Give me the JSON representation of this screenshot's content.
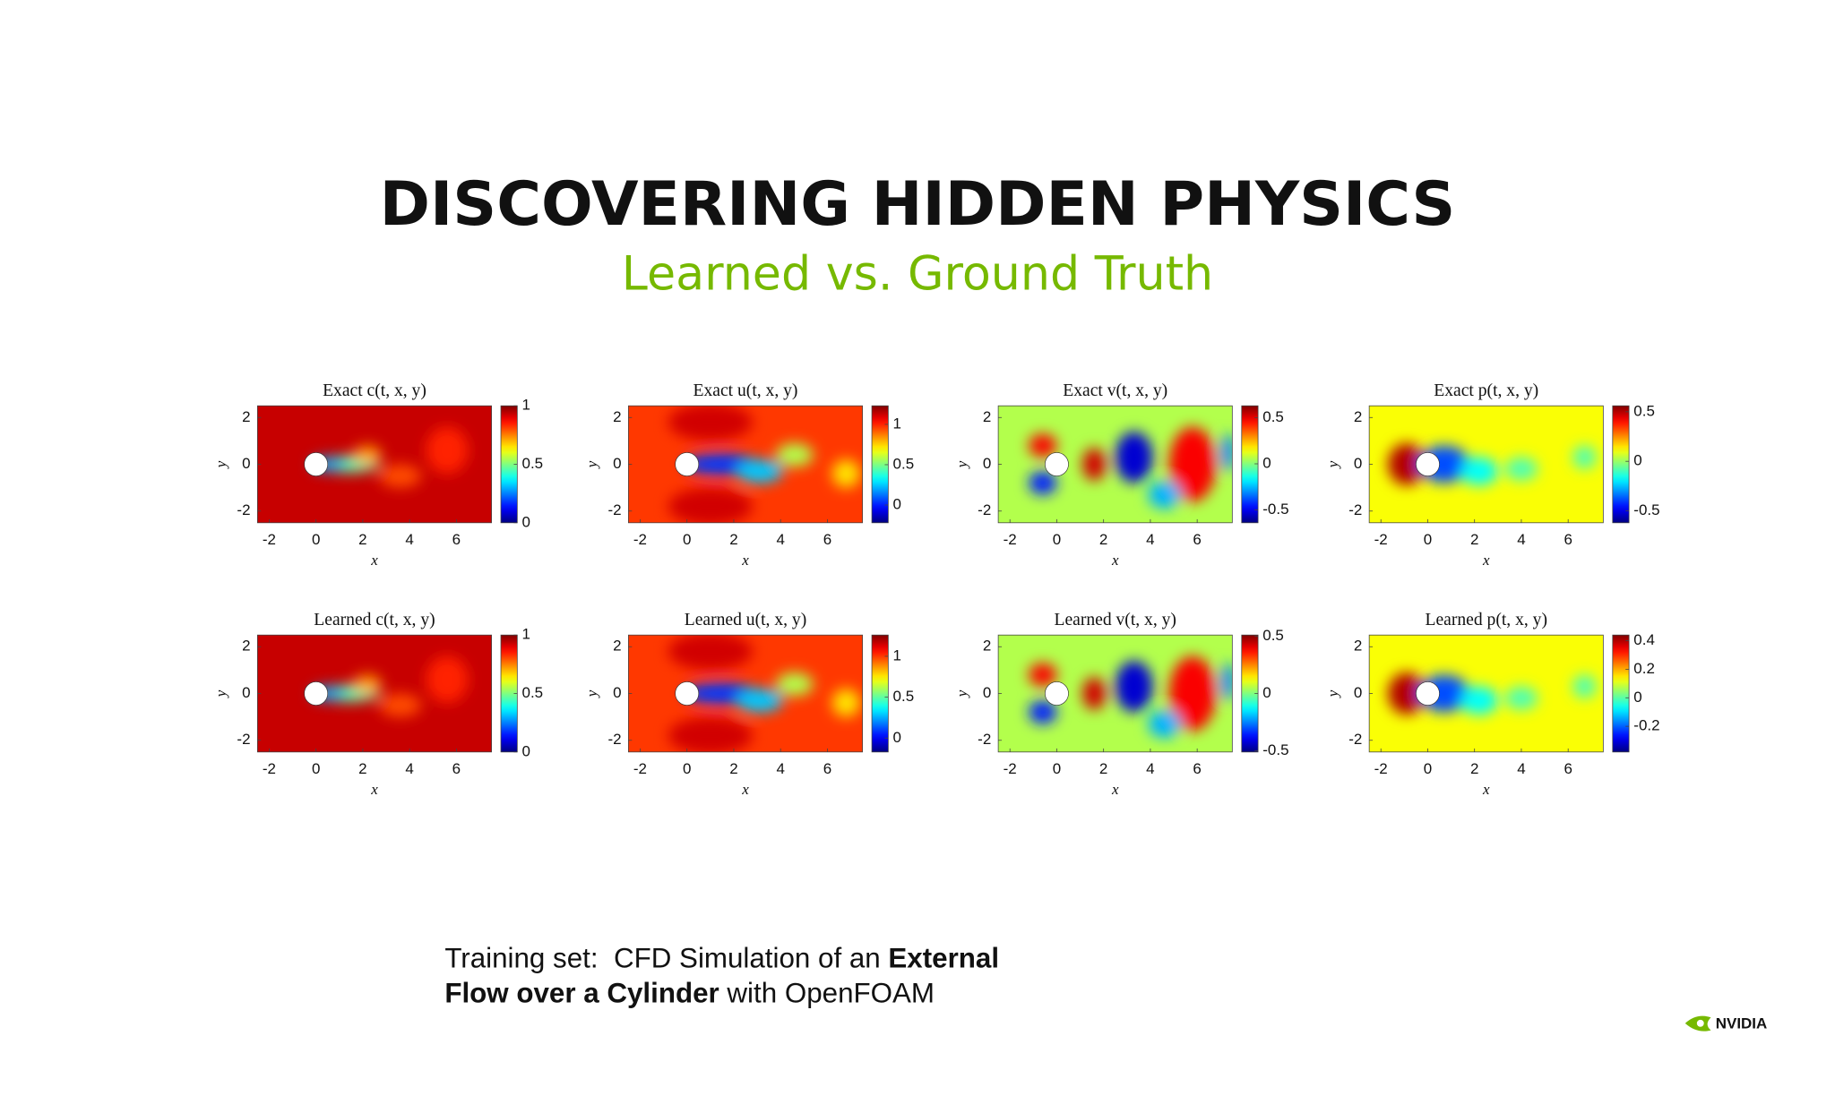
{
  "header": {
    "title": "DISCOVERING HIDDEN PHYSICS",
    "subtitle": "Learned vs. Ground Truth"
  },
  "chart_data": [
    {
      "type": "heatmap",
      "title": "Exact c(t, x, y)",
      "xlabel": "x",
      "ylabel": "y",
      "xlim": [
        -2.5,
        7.5
      ],
      "ylim": [
        -2.5,
        2.5
      ],
      "xticks": [
        -2,
        0,
        2,
        4,
        6
      ],
      "yticks": [
        -2,
        0,
        2
      ],
      "clim": [
        0,
        1
      ],
      "cticks": [
        0,
        0.5,
        1
      ]
    },
    {
      "type": "heatmap",
      "title": "Exact u(t, x, y)",
      "xlabel": "x",
      "ylabel": "y",
      "xlim": [
        -2.5,
        7.5
      ],
      "ylim": [
        -2.5,
        2.5
      ],
      "xticks": [
        -2,
        0,
        2,
        4,
        6
      ],
      "yticks": [
        -2,
        0,
        2
      ],
      "clim": [
        -0.22,
        1.23
      ],
      "cticks": [
        0,
        0.5,
        1
      ]
    },
    {
      "type": "heatmap",
      "title": "Exact v(t, x, y)",
      "xlabel": "x",
      "ylabel": "y",
      "xlim": [
        -2.5,
        7.5
      ],
      "ylim": [
        -2.5,
        2.5
      ],
      "xticks": [
        -2,
        0,
        2,
        4,
        6
      ],
      "yticks": [
        -2,
        0,
        2
      ],
      "clim": [
        -0.64,
        0.63
      ],
      "cticks": [
        -0.5,
        0,
        0.5
      ]
    },
    {
      "type": "heatmap",
      "title": "Exact p(t, x, y)",
      "xlabel": "x",
      "ylabel": "y",
      "xlim": [
        -2.5,
        7.5
      ],
      "ylim": [
        -2.5,
        2.5
      ],
      "xticks": [
        -2,
        0,
        2,
        4,
        6
      ],
      "yticks": [
        -2,
        0,
        2
      ],
      "clim": [
        -0.62,
        0.56
      ],
      "cticks": [
        -0.5,
        0,
        0.5
      ]
    },
    {
      "type": "heatmap",
      "title": "Learned c(t, x, y)",
      "xlabel": "x",
      "ylabel": "y",
      "xlim": [
        -2.5,
        7.5
      ],
      "ylim": [
        -2.5,
        2.5
      ],
      "xticks": [
        -2,
        0,
        2,
        4,
        6
      ],
      "yticks": [
        -2,
        0,
        2
      ],
      "clim": [
        0,
        1
      ],
      "cticks": [
        0,
        0.5,
        1
      ]
    },
    {
      "type": "heatmap",
      "title": "Learned u(t, x, y)",
      "xlabel": "x",
      "ylabel": "y",
      "xlim": [
        -2.5,
        7.5
      ],
      "ylim": [
        -2.5,
        2.5
      ],
      "xticks": [
        -2,
        0,
        2,
        4,
        6
      ],
      "yticks": [
        -2,
        0,
        2
      ],
      "clim": [
        -0.17,
        1.26
      ],
      "cticks": [
        0,
        0.5,
        1
      ]
    },
    {
      "type": "heatmap",
      "title": "Learned v(t, x, y)",
      "xlabel": "x",
      "ylabel": "y",
      "xlim": [
        -2.5,
        7.5
      ],
      "ylim": [
        -2.5,
        2.5
      ],
      "xticks": [
        -2,
        0,
        2,
        4,
        6
      ],
      "yticks": [
        -2,
        0,
        2
      ],
      "clim": [
        -0.51,
        0.51
      ],
      "cticks": [
        -0.5,
        0,
        0.5
      ]
    },
    {
      "type": "heatmap",
      "title": "Learned p(t, x, y)",
      "xlabel": "x",
      "ylabel": "y",
      "xlim": [
        -2.5,
        7.5
      ],
      "ylim": [
        -2.5,
        2.5
      ],
      "xticks": [
        -2,
        0,
        2,
        4,
        6
      ],
      "yticks": [
        -2,
        0,
        2
      ],
      "clim": [
        -0.38,
        0.44
      ],
      "cticks": [
        -0.2,
        0,
        0.2,
        0.4
      ]
    }
  ],
  "caption": {
    "lines": [
      [
        "Training set:  CFD Simulation of an ",
        "External"
      ],
      [
        "Flow over a Cylinder",
        " with OpenFOAM"
      ]
    ]
  },
  "logo": {
    "text": "NVIDIA"
  }
}
